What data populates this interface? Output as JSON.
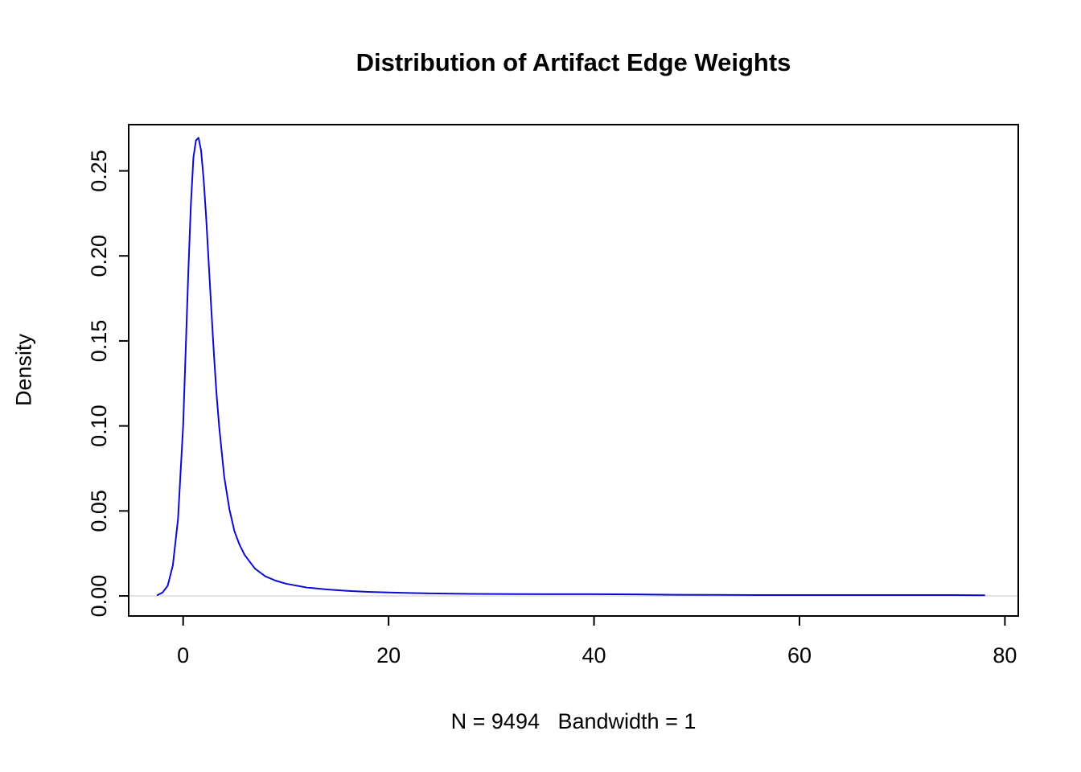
{
  "chart_data": {
    "type": "line",
    "title": "Distribution of Artifact Edge Weights",
    "xlabel": "N = 9494   Bandwidth = 1",
    "ylabel": "Density",
    "n": 9494,
    "bandwidth": 1,
    "xlim": [
      -5.3,
      81.3
    ],
    "ylim": [
      -0.0118,
      0.2772
    ],
    "grid": false,
    "legend": false,
    "curve_color": "#0b0bd0",
    "zero_line_color": "#d9d9d9",
    "box_color": "#000000",
    "x_ticks": [
      {
        "value": 0,
        "label": "0"
      },
      {
        "value": 20,
        "label": "20"
      },
      {
        "value": 40,
        "label": "40"
      },
      {
        "value": 60,
        "label": "60"
      },
      {
        "value": 80,
        "label": "80"
      }
    ],
    "y_ticks": [
      {
        "value": 0.0,
        "label": "0.00"
      },
      {
        "value": 0.05,
        "label": "0.05"
      },
      {
        "value": 0.1,
        "label": "0.10"
      },
      {
        "value": 0.15,
        "label": "0.15"
      },
      {
        "value": 0.2,
        "label": "0.20"
      },
      {
        "value": 0.25,
        "label": "0.25"
      }
    ],
    "series": [
      {
        "name": "density",
        "x": [
          -2.5,
          -2,
          -1.5,
          -1,
          -0.5,
          0,
          0.25,
          0.5,
          0.75,
          1,
          1.25,
          1.5,
          1.75,
          2,
          2.25,
          2.5,
          2.75,
          3,
          3.25,
          3.5,
          4,
          4.5,
          5,
          5.5,
          6,
          7,
          8,
          9,
          10,
          12,
          14,
          16,
          18,
          20,
          24,
          28,
          32,
          36,
          40,
          44,
          48,
          52,
          56,
          60,
          65,
          70,
          75,
          78
        ],
        "y": [
          0.0005,
          0.002,
          0.006,
          0.018,
          0.045,
          0.1,
          0.145,
          0.19,
          0.23,
          0.258,
          0.268,
          0.2695,
          0.262,
          0.245,
          0.222,
          0.195,
          0.168,
          0.142,
          0.119,
          0.1,
          0.07,
          0.051,
          0.038,
          0.03,
          0.024,
          0.016,
          0.0115,
          0.009,
          0.0072,
          0.005,
          0.0038,
          0.003,
          0.0024,
          0.002,
          0.0015,
          0.0012,
          0.0011,
          0.001,
          0.001,
          0.0009,
          0.0007,
          0.0006,
          0.0005,
          0.0005,
          0.0005,
          0.0005,
          0.0005,
          0.0004
        ]
      }
    ]
  }
}
